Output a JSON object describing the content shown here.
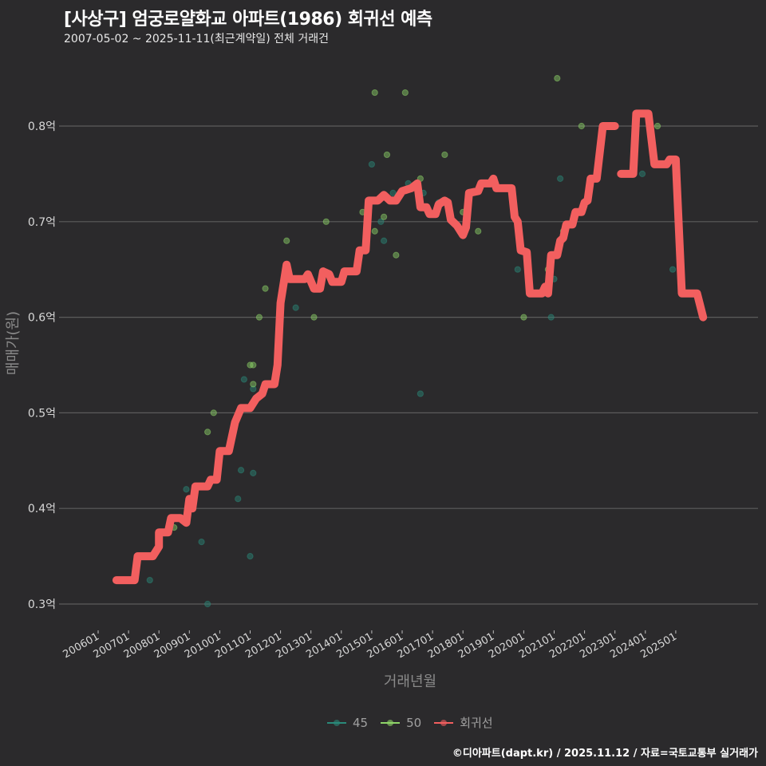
{
  "header": {
    "title": "[사상구] 엄궁로얄화교 아파트(1986) 회귀선 예측",
    "subtitle": "2007-05-02 ~ 2025-11-11(최근계약일) 전체 거래건"
  },
  "legend": [
    {
      "label": "45",
      "color": "#2a8a7a"
    },
    {
      "label": "50",
      "color": "#8ed468"
    },
    {
      "label": "회귀선",
      "color": "#f25f5f"
    }
  ],
  "caption": "©디아파트(dapt.kr) / 2025.11.12 / 자료=국토교통부 실거래가",
  "colors": {
    "background": "#2b2a2c",
    "grid": "#5c5c5c",
    "regression": "#f25f5f",
    "s45": "#2a8a7a",
    "s50": "#8ed468"
  },
  "chart_data": {
    "type": "scatter",
    "title": "[사상구] 엄궁로얄화교 아파트(1986) 회귀선 예측",
    "subtitle": "2007-05-02 ~ 2025-11-11(최근계약일) 전체 거래건",
    "xlabel": "거래년월",
    "ylabel": "매매가(원)",
    "x_ticks": [
      "200601",
      "200701",
      "200801",
      "200901",
      "201001",
      "201101",
      "201201",
      "201301",
      "201401",
      "201501",
      "201601",
      "201701",
      "201801",
      "201901",
      "202001",
      "202101",
      "202201",
      "202301",
      "202401",
      "202501"
    ],
    "y_ticks": [
      "0.3억",
      "0.4억",
      "0.5억",
      "0.6억",
      "0.7억",
      "0.8억"
    ],
    "y_tick_values": [
      0.3,
      0.4,
      0.5,
      0.6,
      0.7,
      0.8
    ],
    "xlim": [
      2005.6,
      2026.9
    ],
    "ylim": [
      0.275,
      0.87
    ],
    "grid": true,
    "legend_position": "bottom",
    "series": [
      {
        "name": "45",
        "type": "scatter",
        "points": [
          [
            2007.7,
            0.325
          ],
          [
            2008.9,
            0.42
          ],
          [
            2009.4,
            0.365
          ],
          [
            2009.6,
            0.3
          ],
          [
            2010.6,
            0.41
          ],
          [
            2010.8,
            0.535
          ],
          [
            2011.1,
            0.525
          ],
          [
            2011.0,
            0.35
          ],
          [
            2011.1,
            0.437
          ],
          [
            2010.7,
            0.44
          ],
          [
            2012.5,
            0.61
          ],
          [
            2014.9,
            0.71
          ],
          [
            2015.0,
            0.76
          ],
          [
            2015.3,
            0.7
          ],
          [
            2015.4,
            0.68
          ],
          [
            2015.7,
            0.73
          ],
          [
            2016.2,
            0.74
          ],
          [
            2016.6,
            0.52
          ],
          [
            2016.7,
            0.73
          ],
          [
            2017.2,
            0.72
          ],
          [
            2019.8,
            0.65
          ],
          [
            2020.7,
            0.63
          ],
          [
            2020.9,
            0.6
          ],
          [
            2021.0,
            0.64
          ],
          [
            2021.2,
            0.745
          ],
          [
            2023.9,
            0.75
          ],
          [
            2024.9,
            0.65
          ]
        ]
      },
      {
        "name": "50",
        "type": "scatter",
        "points": [
          [
            2008.5,
            0.38
          ],
          [
            2009.8,
            0.5
          ],
          [
            2009.6,
            0.48
          ],
          [
            2011.1,
            0.55
          ],
          [
            2011.0,
            0.55
          ],
          [
            2011.1,
            0.53
          ],
          [
            2011.3,
            0.6
          ],
          [
            2011.5,
            0.63
          ],
          [
            2012.2,
            0.68
          ],
          [
            2013.1,
            0.6
          ],
          [
            2013.5,
            0.7
          ],
          [
            2014.7,
            0.71
          ],
          [
            2015.1,
            0.835
          ],
          [
            2015.1,
            0.69
          ],
          [
            2015.4,
            0.705
          ],
          [
            2015.5,
            0.77
          ],
          [
            2015.8,
            0.665
          ],
          [
            2016.1,
            0.835
          ],
          [
            2016.6,
            0.745
          ],
          [
            2017.4,
            0.77
          ],
          [
            2018.0,
            0.71
          ],
          [
            2018.5,
            0.69
          ],
          [
            2020.0,
            0.6
          ],
          [
            2020.8,
            0.65
          ],
          [
            2021.3,
            0.69
          ],
          [
            2021.1,
            0.85
          ],
          [
            2021.9,
            0.8
          ],
          [
            2024.4,
            0.8
          ]
        ]
      },
      {
        "name": "회귀선",
        "type": "line",
        "points": [
          [
            2006.6,
            0.325
          ],
          [
            2007.2,
            0.325
          ],
          [
            2007.3,
            0.35
          ],
          [
            2007.8,
            0.35
          ],
          [
            2008.0,
            0.36
          ],
          [
            2008.0,
            0.375
          ],
          [
            2008.3,
            0.375
          ],
          [
            2008.4,
            0.39
          ],
          [
            2008.7,
            0.39
          ],
          [
            2008.9,
            0.385
          ],
          [
            2009.0,
            0.41
          ],
          [
            2009.1,
            0.4
          ],
          [
            2009.2,
            0.423
          ],
          [
            2009.6,
            0.423
          ],
          [
            2009.7,
            0.43
          ],
          [
            2009.9,
            0.43
          ],
          [
            2010.0,
            0.46
          ],
          [
            2010.3,
            0.46
          ],
          [
            2010.5,
            0.49
          ],
          [
            2010.7,
            0.505
          ],
          [
            2011.0,
            0.505
          ],
          [
            2011.2,
            0.515
          ],
          [
            2011.4,
            0.52
          ],
          [
            2011.5,
            0.53
          ],
          [
            2011.8,
            0.53
          ],
          [
            2011.9,
            0.55
          ],
          [
            2012.0,
            0.615
          ],
          [
            2012.2,
            0.655
          ],
          [
            2012.3,
            0.64
          ],
          [
            2012.8,
            0.64
          ],
          [
            2012.9,
            0.645
          ],
          [
            2013.1,
            0.63
          ],
          [
            2013.3,
            0.63
          ],
          [
            2013.4,
            0.648
          ],
          [
            2013.6,
            0.645
          ],
          [
            2013.7,
            0.637
          ],
          [
            2014.0,
            0.637
          ],
          [
            2014.1,
            0.648
          ],
          [
            2014.5,
            0.648
          ],
          [
            2014.6,
            0.67
          ],
          [
            2014.8,
            0.67
          ],
          [
            2014.9,
            0.722
          ],
          [
            2015.2,
            0.722
          ],
          [
            2015.4,
            0.728
          ],
          [
            2015.6,
            0.722
          ],
          [
            2015.8,
            0.722
          ],
          [
            2016.0,
            0.732
          ],
          [
            2016.3,
            0.735
          ],
          [
            2016.5,
            0.74
          ],
          [
            2016.6,
            0.715
          ],
          [
            2016.8,
            0.715
          ],
          [
            2016.9,
            0.708
          ],
          [
            2017.1,
            0.708
          ],
          [
            2017.2,
            0.718
          ],
          [
            2017.4,
            0.722
          ],
          [
            2017.5,
            0.72
          ],
          [
            2017.6,
            0.702
          ],
          [
            2017.8,
            0.696
          ],
          [
            2018.0,
            0.686
          ],
          [
            2018.1,
            0.694
          ],
          [
            2018.2,
            0.73
          ],
          [
            2018.5,
            0.732
          ],
          [
            2018.6,
            0.74
          ],
          [
            2018.9,
            0.74
          ],
          [
            2019.0,
            0.745
          ],
          [
            2019.1,
            0.735
          ],
          [
            2019.6,
            0.735
          ],
          [
            2019.7,
            0.705
          ],
          [
            2019.8,
            0.7
          ],
          [
            2019.9,
            0.67
          ],
          [
            2020.1,
            0.668
          ],
          [
            2020.2,
            0.625
          ],
          [
            2020.6,
            0.625
          ],
          [
            2020.7,
            0.632
          ],
          [
            2020.8,
            0.625
          ],
          [
            2020.9,
            0.665
          ],
          [
            2021.1,
            0.665
          ],
          [
            2021.2,
            0.68
          ],
          [
            2021.3,
            0.683
          ],
          [
            2021.4,
            0.697
          ],
          [
            2021.6,
            0.697
          ],
          [
            2021.7,
            0.71
          ],
          [
            2021.9,
            0.71
          ],
          [
            2022.0,
            0.72
          ],
          [
            2022.1,
            0.722
          ],
          [
            2022.2,
            0.745
          ],
          [
            2022.4,
            0.745
          ],
          [
            2022.6,
            0.8
          ],
          [
            2023.0,
            0.8
          ]
        ],
        "segments_note": "line resumes after gap",
        "points_2": [
          [
            2023.2,
            0.75
          ],
          [
            2023.6,
            0.75
          ],
          [
            2023.7,
            0.813
          ],
          [
            2024.1,
            0.813
          ],
          [
            2024.3,
            0.76
          ],
          [
            2024.7,
            0.76
          ],
          [
            2024.8,
            0.765
          ],
          [
            2025.0,
            0.765
          ],
          [
            2025.2,
            0.625
          ],
          [
            2025.7,
            0.625
          ],
          [
            2025.9,
            0.6
          ]
        ]
      }
    ]
  }
}
